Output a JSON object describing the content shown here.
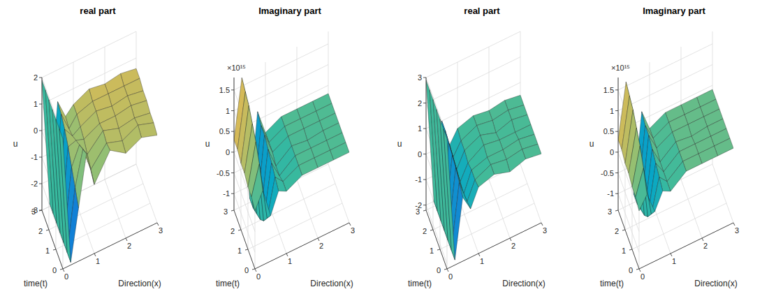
{
  "chart_data": [
    {
      "type": "surface",
      "title": "real part",
      "xlabel": "Direction(x)",
      "ylabel": "time(t)",
      "zlabel": "u",
      "grid": true,
      "x": [
        0,
        0.25,
        0.5,
        0.75,
        1,
        1.5,
        2,
        2.5,
        3
      ],
      "y": [
        0,
        0.5,
        1,
        1.5,
        2,
        2.5,
        3
      ],
      "values": [
        [
          1.9,
          -2.9,
          -1.0,
          0.9,
          -0.4,
          0.6,
          0.2,
          0.5,
          0.3
        ],
        [
          1.9,
          -2.9,
          -0.6,
          0.7,
          -0.2,
          0.5,
          0.3,
          0.6,
          0.4
        ],
        [
          1.9,
          -2.9,
          -0.2,
          0.5,
          0.0,
          0.6,
          0.4,
          0.5,
          0.4
        ],
        [
          1.9,
          -2.9,
          0.2,
          0.3,
          0.2,
          0.5,
          0.5,
          0.6,
          0.5
        ],
        [
          1.9,
          -2.9,
          0.5,
          0.1,
          0.3,
          0.6,
          0.5,
          0.6,
          0.5
        ],
        [
          1.9,
          -2.9,
          0.7,
          0.0,
          0.4,
          0.6,
          0.6,
          0.6,
          0.6
        ],
        [
          1.9,
          -2.9,
          0.8,
          0.1,
          0.4,
          0.7,
          0.6,
          0.7,
          0.6
        ]
      ],
      "xlim": [
        0,
        3
      ],
      "xticks": [
        0,
        1,
        2,
        3
      ],
      "ylim": [
        0,
        3
      ],
      "yticks": [
        0,
        1,
        2,
        3
      ],
      "zlim": [
        -3,
        2
      ],
      "zticks": [
        -3,
        -2,
        -1,
        0,
        1,
        2
      ]
    },
    {
      "type": "surface",
      "title": "Imaginary part",
      "xlabel": "Direction(x)",
      "ylabel": "time(t)",
      "zlabel": "u",
      "z_exponent_label": "×10¹⁵",
      "grid": true,
      "x": [
        0,
        0.25,
        0.5,
        0.75,
        1,
        1.5,
        2,
        2.5,
        3
      ],
      "y": [
        0,
        0.5,
        1,
        1.5,
        2,
        2.5,
        3
      ],
      "values": [
        [
          0.0,
          0.4,
          -0.3,
          0.2,
          0.1,
          0.3,
          0.3,
          0.3,
          0.3
        ],
        [
          0.1,
          0.8,
          -0.6,
          0.3,
          0.1,
          0.3,
          0.3,
          0.3,
          0.3
        ],
        [
          0.1,
          1.1,
          -0.9,
          0.4,
          0.0,
          0.3,
          0.3,
          0.3,
          0.3
        ],
        [
          0.2,
          1.3,
          -1.1,
          0.5,
          0.0,
          0.3,
          0.25,
          0.3,
          0.3
        ],
        [
          0.2,
          1.5,
          -1.2,
          0.6,
          0.1,
          0.3,
          0.3,
          0.3,
          0.3
        ],
        [
          0.3,
          1.6,
          -1.3,
          0.6,
          0.1,
          0.3,
          0.3,
          0.3,
          0.3
        ],
        [
          0.3,
          1.7,
          -1.3,
          0.7,
          0.1,
          0.3,
          0.3,
          0.3,
          0.3
        ]
      ],
      "xlim": [
        0,
        3
      ],
      "xticks": [
        0,
        1,
        2,
        3
      ],
      "ylim": [
        0,
        3
      ],
      "yticks": [
        0,
        1,
        2,
        3
      ],
      "zlim": [
        -1.4,
        1.8
      ],
      "zticks": [
        -1,
        -0.5,
        0,
        0.5,
        1,
        1.5
      ]
    },
    {
      "type": "surface",
      "title": "real part",
      "xlabel": "Direction(x)",
      "ylabel": "time(t)",
      "zlabel": "u",
      "grid": true,
      "x": [
        0,
        0.25,
        0.5,
        0.75,
        1,
        1.5,
        2,
        2.5,
        3
      ],
      "y": [
        0,
        0.5,
        1,
        1.5,
        2,
        2.5,
        3
      ],
      "values": [
        [
          2.9,
          -2.0,
          0.3,
          -0.3,
          0.4,
          0.6,
          0.4,
          0.6,
          0.5
        ],
        [
          2.9,
          -2.0,
          0.5,
          -0.4,
          0.3,
          0.6,
          0.5,
          0.6,
          0.5
        ],
        [
          2.9,
          -2.0,
          0.7,
          -0.5,
          0.3,
          0.5,
          0.5,
          0.6,
          0.5
        ],
        [
          2.9,
          -2.0,
          0.8,
          -0.4,
          0.2,
          0.6,
          0.5,
          0.5,
          0.5
        ],
        [
          2.9,
          -2.0,
          0.9,
          -0.3,
          0.3,
          0.6,
          0.4,
          0.6,
          0.5
        ],
        [
          2.9,
          -2.0,
          1.0,
          -0.2,
          0.3,
          0.6,
          0.5,
          0.6,
          0.5
        ],
        [
          2.9,
          -2.0,
          1.0,
          -0.1,
          0.4,
          0.6,
          0.5,
          0.6,
          0.5
        ]
      ],
      "xlim": [
        0,
        3
      ],
      "xticks": [
        0,
        1,
        2,
        3
      ],
      "ylim": [
        0,
        3
      ],
      "yticks": [
        0,
        1,
        2,
        3
      ],
      "zlim": [
        -2.2,
        3
      ],
      "zticks": [
        -2,
        -1,
        0,
        1,
        2,
        3
      ]
    },
    {
      "type": "surface",
      "title": "Imaginary part",
      "xlabel": "Direction(x)",
      "ylabel": "time(t)",
      "zlabel": "u",
      "z_exponent_label": "×10¹⁵",
      "grid": true,
      "x": [
        0,
        0.25,
        0.5,
        0.75,
        1,
        1.5,
        2,
        2.5,
        3
      ],
      "y": [
        0,
        0.5,
        1,
        1.5,
        2,
        2.5,
        3
      ],
      "values": [
        [
          0.0,
          0.3,
          -0.2,
          0.2,
          0.1,
          0.4,
          0.4,
          0.4,
          0.4
        ],
        [
          0.1,
          0.7,
          -0.5,
          0.3,
          0.1,
          0.4,
          0.4,
          0.4,
          0.4
        ],
        [
          0.1,
          1.0,
          -0.8,
          0.4,
          0.1,
          0.4,
          0.4,
          0.4,
          0.4
        ],
        [
          0.2,
          1.2,
          -1.0,
          0.5,
          0.1,
          0.4,
          0.35,
          0.4,
          0.4
        ],
        [
          0.2,
          1.4,
          -1.1,
          0.6,
          0.2,
          0.4,
          0.4,
          0.4,
          0.4
        ],
        [
          0.3,
          1.5,
          -1.2,
          0.6,
          0.2,
          0.4,
          0.4,
          0.4,
          0.4
        ],
        [
          0.3,
          1.6,
          -1.2,
          0.7,
          0.2,
          0.4,
          0.4,
          0.4,
          0.4
        ]
      ],
      "xlim": [
        0,
        3
      ],
      "xticks": [
        0,
        1,
        2,
        3
      ],
      "ylim": [
        0,
        3
      ],
      "yticks": [
        0,
        1,
        2,
        3
      ],
      "zlim": [
        -1.4,
        1.8
      ],
      "zticks": [
        -1,
        -0.5,
        0,
        0.5,
        1,
        1.5
      ]
    }
  ]
}
